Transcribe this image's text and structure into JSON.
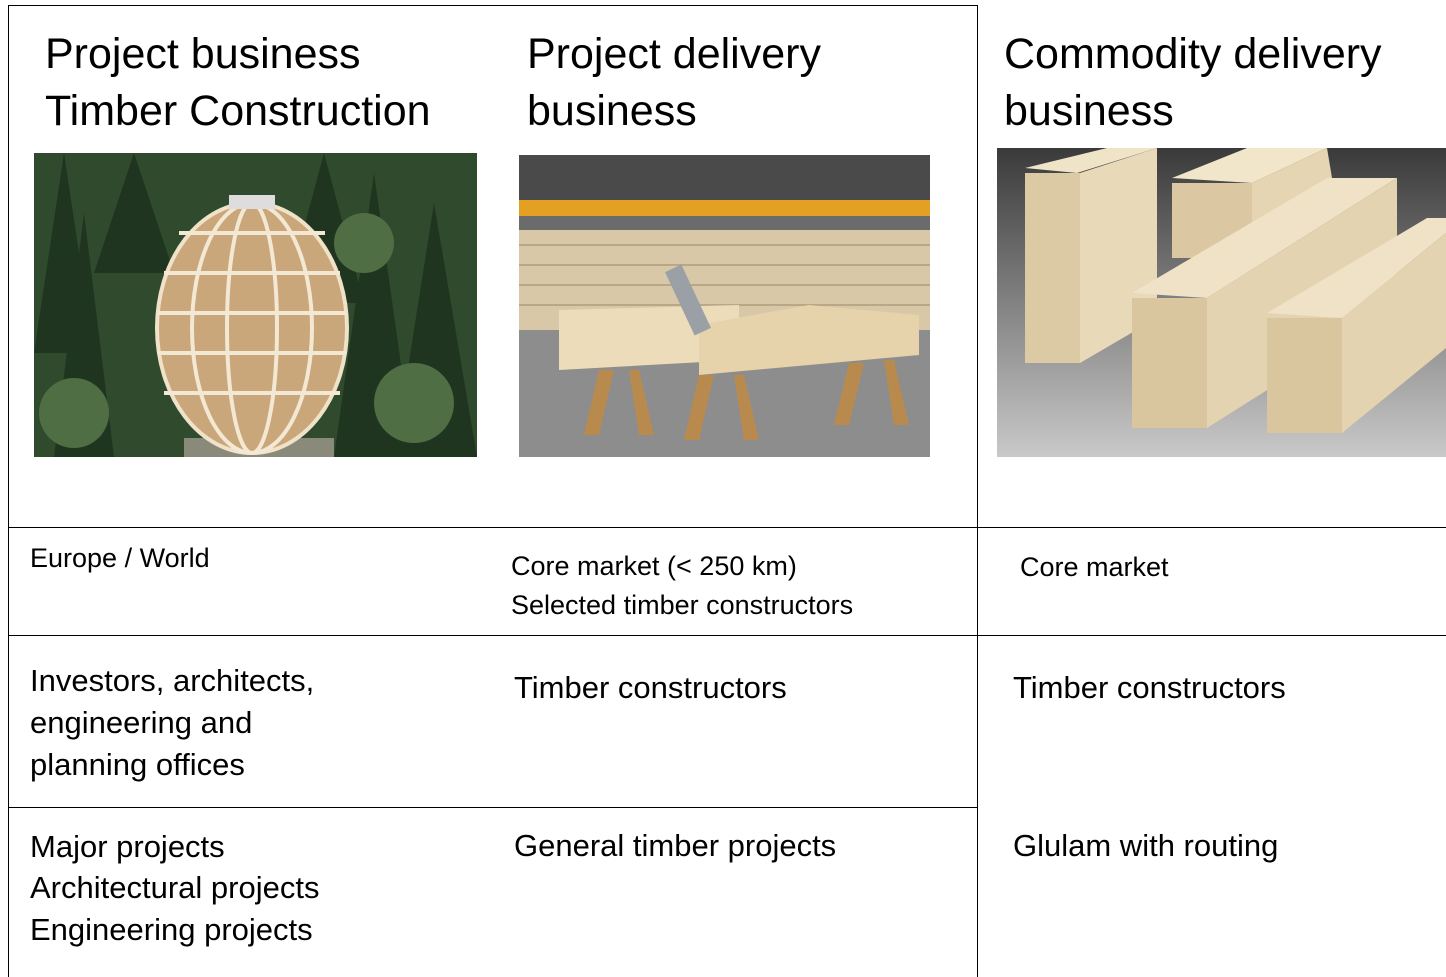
{
  "columns": [
    {
      "title": [
        "Project business",
        "Timber Construction"
      ],
      "market": [
        "Europe / World"
      ],
      "customers": [
        "Investors, architects,",
        "engineering and",
        "planning offices"
      ],
      "projects": [
        "Major projects",
        "Architectural projects",
        "Engineering projects"
      ]
    },
    {
      "title": [
        "Project delivery",
        "business"
      ],
      "market": [
        "Core market (< 250 km)",
        "Selected timber constructors"
      ],
      "customers": [
        "Timber constructors"
      ],
      "projects": [
        "General timber projects"
      ]
    },
    {
      "title": [
        "Commodity delivery",
        "business"
      ],
      "market": [
        "Core market"
      ],
      "customers": [
        "Timber constructors"
      ],
      "projects": [
        "Glulam with routing"
      ]
    }
  ]
}
